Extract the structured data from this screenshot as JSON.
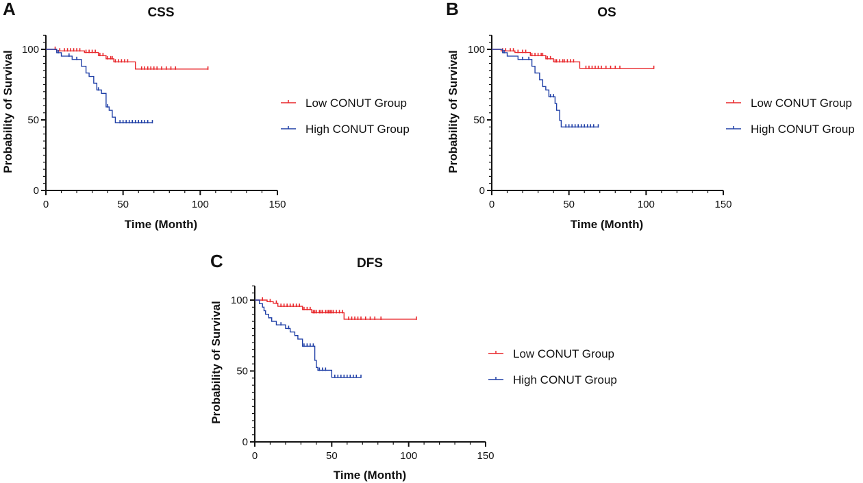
{
  "figure": {
    "panels": [
      "A",
      "B",
      "C"
    ]
  },
  "colors": {
    "low": "#e8262a",
    "high": "#1f3fa6",
    "axis": "#111111"
  },
  "chart_data": [
    {
      "panel": "A",
      "type": "line",
      "subtype": "kaplan-meier",
      "title": "CSS",
      "xlabel": "Time  (Month)",
      "ylabel": "Probability of Survival",
      "xlim": [
        0,
        150
      ],
      "ylim": [
        0,
        110
      ],
      "xticks": [
        0,
        50,
        100,
        150
      ],
      "yticks": [
        0,
        50,
        100
      ],
      "legend_position": "right",
      "series": [
        {
          "name": "Low CONUT Group",
          "color": "#e8262a",
          "steps": [
            [
              0,
              100
            ],
            [
              7,
              98.9
            ],
            [
              25,
              97.8
            ],
            [
              34,
              95.6
            ],
            [
              39,
              93.3
            ],
            [
              44,
              91.1
            ],
            [
              58,
              86.0
            ],
            [
              105,
              86.0
            ]
          ],
          "censored": [
            6,
            9,
            12,
            14,
            16,
            18,
            20,
            22,
            26,
            28,
            30,
            32,
            35,
            37,
            40,
            42,
            43,
            45,
            47,
            49,
            51,
            53,
            62,
            64,
            66,
            68,
            70,
            72,
            75,
            78,
            81,
            84,
            105
          ]
        },
        {
          "name": "High CONUT Group",
          "color": "#1f3fa6",
          "steps": [
            [
              0,
              100
            ],
            [
              7,
              97.6
            ],
            [
              10,
              95.2
            ],
            [
              17,
              92.8
            ],
            [
              23,
              88.0
            ],
            [
              26,
              83.2
            ],
            [
              28,
              80.8
            ],
            [
              31,
              76.0
            ],
            [
              33,
              71.2
            ],
            [
              36,
              68.8
            ],
            [
              39,
              59.2
            ],
            [
              41,
              56.8
            ],
            [
              43,
              51.9
            ],
            [
              45,
              48.0
            ],
            [
              69,
              48.0
            ]
          ],
          "censored": [
            8,
            15,
            20,
            34,
            40,
            48,
            50,
            52,
            54,
            56,
            58,
            60,
            62,
            64,
            66,
            69
          ]
        }
      ]
    },
    {
      "panel": "B",
      "type": "line",
      "subtype": "kaplan-meier",
      "title": "OS",
      "xlabel": "Time  (Month)",
      "ylabel": "Probability of Survival",
      "xlim": [
        0,
        150
      ],
      "ylim": [
        0,
        110
      ],
      "xticks": [
        0,
        50,
        100,
        150
      ],
      "yticks": [
        0,
        50,
        100
      ],
      "legend_position": "right",
      "series": [
        {
          "name": "Low CONUT Group",
          "color": "#e8262a",
          "steps": [
            [
              0,
              100
            ],
            [
              6,
              98.9
            ],
            [
              15,
              97.8
            ],
            [
              25,
              95.6
            ],
            [
              35,
              93.3
            ],
            [
              40,
              91.1
            ],
            [
              57,
              86.5
            ],
            [
              105,
              86.5
            ]
          ],
          "censored": [
            7,
            9,
            12,
            14,
            17,
            20,
            22,
            26,
            28,
            30,
            32,
            33,
            36,
            38,
            41,
            42,
            44,
            46,
            47,
            49,
            51,
            53,
            61,
            63,
            65,
            67,
            69,
            71,
            74,
            77,
            80,
            83,
            105
          ]
        },
        {
          "name": "High CONUT Group",
          "color": "#1f3fa6",
          "steps": [
            [
              0,
              100
            ],
            [
              7,
              97.6
            ],
            [
              10,
              95.2
            ],
            [
              17,
              92.8
            ],
            [
              26,
              88.0
            ],
            [
              28,
              83.2
            ],
            [
              31,
              78.4
            ],
            [
              33,
              73.6
            ],
            [
              35,
              71.2
            ],
            [
              37,
              66.4
            ],
            [
              41,
              61.6
            ],
            [
              42,
              56.8
            ],
            [
              44,
              49.6
            ],
            [
              45,
              45.0
            ],
            [
              69,
              45.0
            ]
          ],
          "censored": [
            8,
            20,
            24,
            38,
            40,
            48,
            50,
            52,
            54,
            56,
            58,
            60,
            62,
            64,
            66,
            69
          ]
        }
      ]
    },
    {
      "panel": "C",
      "type": "line",
      "subtype": "kaplan-meier",
      "title": "DFS",
      "xlabel": "Time  (Month)",
      "ylabel": "Probability of Survival",
      "xlim": [
        0,
        150
      ],
      "ylim": [
        0,
        110
      ],
      "xticks": [
        0,
        50,
        100,
        150
      ],
      "yticks": [
        0,
        50,
        100
      ],
      "legend_position": "right",
      "series": [
        {
          "name": "Low CONUT Group",
          "color": "#e8262a",
          "steps": [
            [
              0,
              100
            ],
            [
              8,
              98.9
            ],
            [
              12,
              97.8
            ],
            [
              15,
              95.6
            ],
            [
              31,
              93.3
            ],
            [
              37,
              91.1
            ],
            [
              58,
              86.5
            ],
            [
              105,
              86.5
            ]
          ],
          "censored": [
            5,
            10,
            14,
            17,
            19,
            21,
            23,
            25,
            27,
            29,
            32,
            34,
            36,
            38,
            39,
            40,
            42,
            43,
            44,
            46,
            47,
            48,
            49,
            50,
            51,
            53,
            55,
            57,
            61,
            63,
            65,
            67,
            69,
            72,
            75,
            78,
            82,
            105
          ]
        },
        {
          "name": "High CONUT Group",
          "color": "#1f3fa6",
          "steps": [
            [
              0,
              100
            ],
            [
              3,
              97.5
            ],
            [
              5,
              95.0
            ],
            [
              6,
              92.5
            ],
            [
              7,
              90.0
            ],
            [
              9,
              87.5
            ],
            [
              11,
              85.0
            ],
            [
              14,
              82.5
            ],
            [
              20,
              80.0
            ],
            [
              23,
              77.5
            ],
            [
              26,
              75.0
            ],
            [
              28,
              72.5
            ],
            [
              31,
              67.5
            ],
            [
              39,
              57.5
            ],
            [
              40,
              52.5
            ],
            [
              41,
              50.5
            ],
            [
              50,
              45.5
            ],
            [
              69,
              45.5
            ]
          ],
          "censored": [
            17,
            22,
            32,
            34,
            36,
            38,
            42,
            44,
            46,
            52,
            54,
            56,
            58,
            60,
            62,
            64,
            66,
            69
          ]
        }
      ]
    }
  ]
}
